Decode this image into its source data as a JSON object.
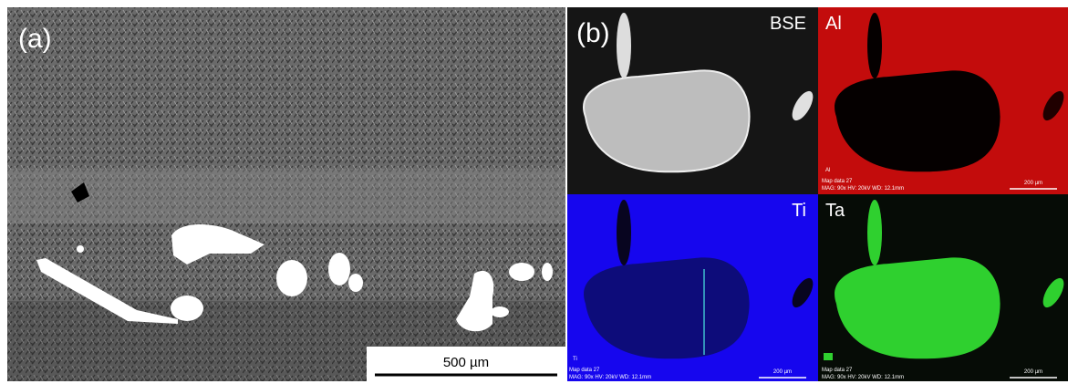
{
  "panel_a": {
    "label": "(a)",
    "scale_bar": "500 µm"
  },
  "panel_b": {
    "label": "(b)",
    "maps": [
      {
        "name": "BSE"
      },
      {
        "name": "Al",
        "corner_label": "Al",
        "info_1": "Map data 27",
        "info_2": "MAG: 90x  HV: 20kV  WD: 12.1mm",
        "scale_bar": "200 µm"
      },
      {
        "name": "Ti",
        "corner_label": "Ti",
        "info_1": "Map data 27",
        "info_2": "MAG: 90x  HV: 20kV  WD: 12.1mm",
        "scale_bar": "200 µm"
      },
      {
        "name": "Ta",
        "info_1": "Map data 27",
        "info_2": "MAG: 90x  HV: 20kV  WD: 12.1mm",
        "scale_bar": "200 µm"
      }
    ]
  }
}
